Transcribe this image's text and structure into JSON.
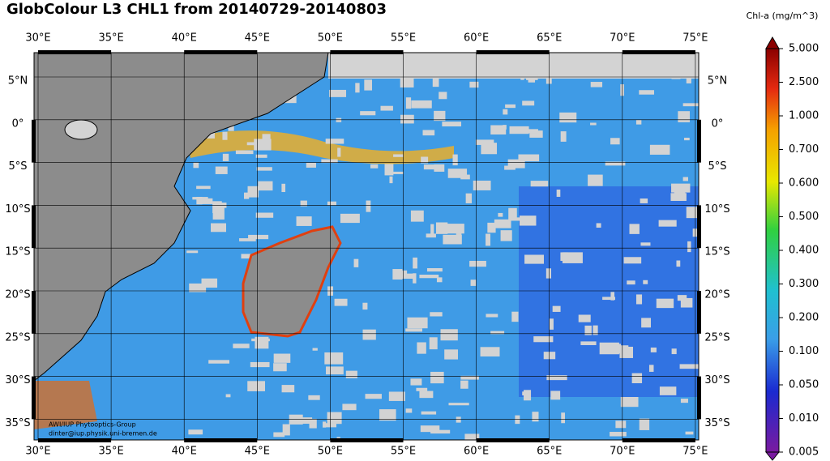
{
  "title": "GlobColour L3 CHL1 from 20140729-20140803",
  "lon_labels": [
    "30°E",
    "35°E",
    "40°E",
    "45°E",
    "50°E",
    "55°E",
    "60°E",
    "65°E",
    "70°E",
    "75°E"
  ],
  "lat_labels": [
    "5°N",
    "0°",
    "5°S",
    "10°S",
    "15°S",
    "20°S",
    "25°S",
    "30°S",
    "35°S"
  ],
  "colorbar": {
    "title": "Chl-a (mg/m^3)",
    "labels": [
      "5.000",
      "2.500",
      "1.000",
      "0.700",
      "0.600",
      "0.500",
      "0.400",
      "0.300",
      "0.200",
      "0.100",
      "0.050",
      "0.010",
      "0.005"
    ]
  },
  "credits": [
    "AWI/IUP Phytooptics-Group",
    "dinter@iup.physik.uni-bremen.de"
  ]
}
